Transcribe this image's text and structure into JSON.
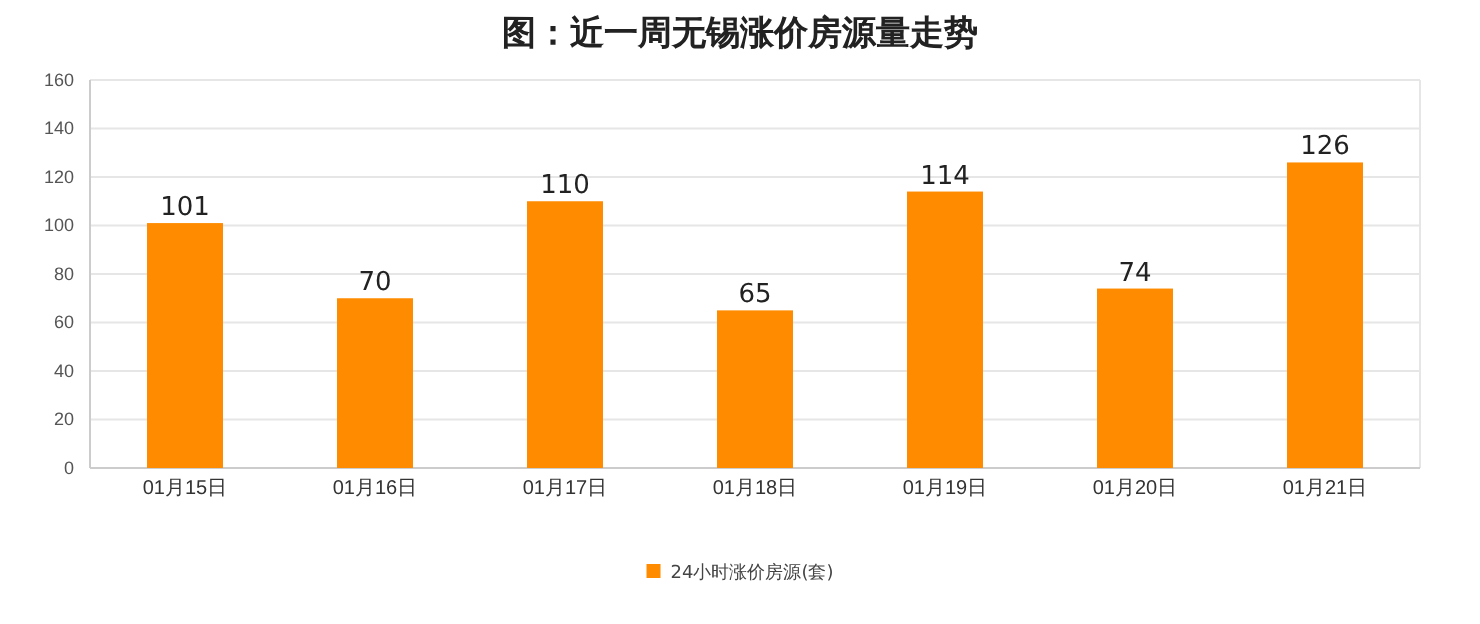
{
  "chart_data": {
    "type": "bar",
    "title": "图：近一周无锡涨价房源量走势",
    "categories": [
      "01月15日",
      "01月16日",
      "01月17日",
      "01月18日",
      "01月19日",
      "01月20日",
      "01月21日"
    ],
    "series": [
      {
        "name": "24小时涨价房源(套)",
        "color": "#ff8c00",
        "values": [
          101,
          70,
          110,
          65,
          114,
          74,
          126
        ]
      }
    ],
    "ylim": [
      0,
      160
    ],
    "yticks": [
      0,
      20,
      40,
      60,
      80,
      100,
      120,
      140,
      160
    ],
    "grid": "y",
    "data_labels": true,
    "legend": "bottom"
  }
}
